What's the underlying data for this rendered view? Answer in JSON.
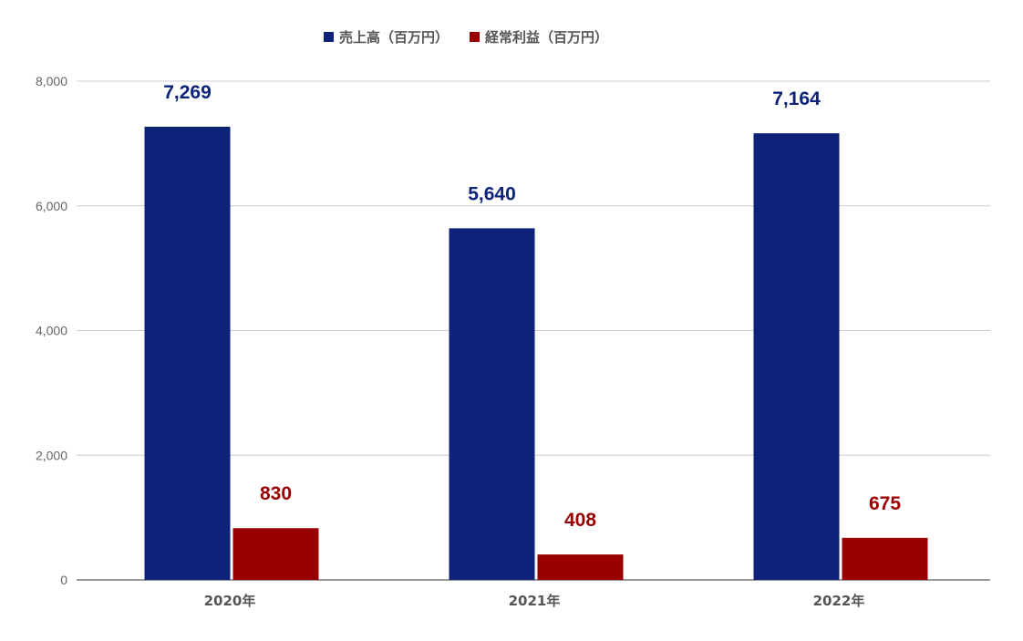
{
  "chart_data": {
    "type": "bar",
    "categories": [
      "2020年",
      "2021年",
      "2022年"
    ],
    "series": [
      {
        "name": "売上高（百万円）",
        "values": [
          7269,
          5640,
          7164
        ],
        "labels": [
          "7,269",
          "5,640",
          "7,164"
        ],
        "color": "#0d2278"
      },
      {
        "name": "経常利益（百万円）",
        "values": [
          830,
          408,
          675
        ],
        "labels": [
          "830",
          "408",
          "675"
        ],
        "color": "#990000"
      }
    ],
    "ylim": [
      0,
      8000
    ],
    "y_ticks": [
      0,
      2000,
      4000,
      6000,
      8000
    ],
    "y_tick_labels": [
      "0",
      "2,000",
      "4,000",
      "6,000",
      "8,000"
    ],
    "grid": true,
    "legend_position": "top-center"
  }
}
